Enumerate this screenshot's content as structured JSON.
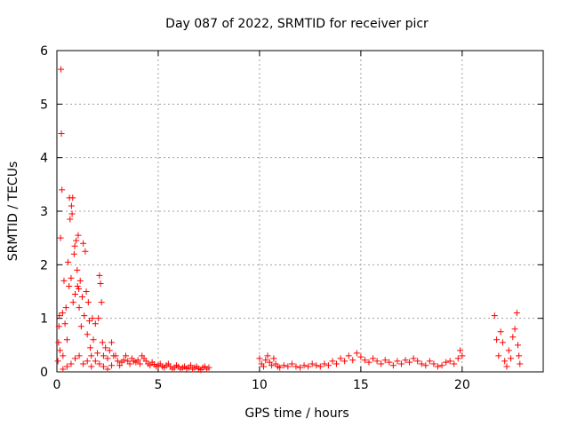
{
  "chart_data": {
    "type": "scatter",
    "title": "Day 087 of 2022, SRMTID for receiver picr",
    "xlabel": "GPS time / hours",
    "ylabel": "SRMTID / TECUs",
    "xlim": [
      0,
      24
    ],
    "ylim": [
      0,
      6
    ],
    "xticks": [
      {
        "value": 0,
        "label": "0"
      },
      {
        "value": 5,
        "label": "5"
      },
      {
        "value": 10,
        "label": "10"
      },
      {
        "value": 15,
        "label": "15"
      },
      {
        "value": 20,
        "label": "20"
      }
    ],
    "yticks": [
      {
        "value": 0,
        "label": "0"
      },
      {
        "value": 1,
        "label": "1"
      },
      {
        "value": 2,
        "label": "2"
      },
      {
        "value": 3,
        "label": "3"
      },
      {
        "value": 4,
        "label": "4"
      },
      {
        "value": 5,
        "label": "5"
      },
      {
        "value": 6,
        "label": "6"
      }
    ],
    "grid": true,
    "marker": "+",
    "marker_color": "#ff0000",
    "series": [
      {
        "name": "SRMTID",
        "points": [
          [
            0.05,
            0.2
          ],
          [
            0.08,
            0.55
          ],
          [
            0.1,
            0.85
          ],
          [
            0.12,
            1.05
          ],
          [
            0.15,
            0.4
          ],
          [
            0.18,
            2.5
          ],
          [
            0.2,
            5.65
          ],
          [
            0.22,
            4.45
          ],
          [
            0.25,
            3.4
          ],
          [
            0.28,
            1.1
          ],
          [
            0.3,
            0.3
          ],
          [
            0.35,
            1.7
          ],
          [
            0.4,
            0.9
          ],
          [
            0.45,
            1.2
          ],
          [
            0.5,
            0.6
          ],
          [
            0.55,
            2.05
          ],
          [
            0.6,
            1.6
          ],
          [
            0.62,
            3.25
          ],
          [
            0.65,
            2.85
          ],
          [
            0.7,
            1.75
          ],
          [
            0.72,
            3.1
          ],
          [
            0.75,
            2.95
          ],
          [
            0.78,
            3.25
          ],
          [
            0.8,
            1.3
          ],
          [
            0.85,
            2.2
          ],
          [
            0.88,
            2.35
          ],
          [
            0.9,
            1.45
          ],
          [
            0.95,
            2.45
          ],
          [
            1.0,
            1.9
          ],
          [
            1.02,
            1.6
          ],
          [
            1.05,
            2.55
          ],
          [
            1.08,
            1.55
          ],
          [
            1.1,
            1.2
          ],
          [
            1.15,
            1.7
          ],
          [
            1.2,
            0.85
          ],
          [
            1.25,
            1.4
          ],
          [
            1.3,
            2.4
          ],
          [
            1.35,
            1.05
          ],
          [
            1.4,
            2.25
          ],
          [
            1.45,
            1.5
          ],
          [
            1.5,
            0.7
          ],
          [
            1.55,
            1.3
          ],
          [
            1.6,
            0.95
          ],
          [
            1.65,
            0.45
          ],
          [
            1.7,
            0.3
          ],
          [
            1.75,
            1.0
          ],
          [
            1.8,
            0.6
          ],
          [
            1.9,
            0.9
          ],
          [
            2.0,
            0.35
          ],
          [
            2.05,
            1.0
          ],
          [
            2.1,
            1.8
          ],
          [
            2.15,
            1.65
          ],
          [
            2.2,
            1.3
          ],
          [
            2.25,
            0.55
          ],
          [
            2.3,
            0.3
          ],
          [
            2.4,
            0.45
          ],
          [
            2.5,
            0.25
          ],
          [
            2.6,
            0.4
          ],
          [
            2.7,
            0.55
          ],
          [
            2.8,
            0.3
          ],
          [
            0.3,
            0.05
          ],
          [
            0.5,
            0.1
          ],
          [
            0.7,
            0.15
          ],
          [
            0.9,
            0.25
          ],
          [
            1.1,
            0.3
          ],
          [
            1.3,
            0.15
          ],
          [
            1.5,
            0.2
          ],
          [
            1.7,
            0.1
          ],
          [
            1.9,
            0.2
          ],
          [
            2.1,
            0.15
          ],
          [
            2.3,
            0.1
          ],
          [
            2.5,
            0.05
          ],
          [
            2.7,
            0.12
          ],
          [
            2.9,
            0.3
          ],
          [
            3.0,
            0.2
          ],
          [
            3.1,
            0.12
          ],
          [
            3.2,
            0.18
          ],
          [
            3.3,
            0.22
          ],
          [
            3.4,
            0.3
          ],
          [
            3.5,
            0.2
          ],
          [
            3.6,
            0.15
          ],
          [
            3.7,
            0.25
          ],
          [
            3.8,
            0.2
          ],
          [
            3.9,
            0.18
          ],
          [
            4.0,
            0.22
          ],
          [
            4.1,
            0.15
          ],
          [
            4.2,
            0.3
          ],
          [
            4.3,
            0.25
          ],
          [
            4.4,
            0.2
          ],
          [
            4.5,
            0.15
          ],
          [
            4.6,
            0.12
          ],
          [
            4.7,
            0.18
          ],
          [
            4.8,
            0.14
          ],
          [
            4.9,
            0.1
          ],
          [
            5.0,
            0.12
          ],
          [
            5.1,
            0.15
          ],
          [
            5.2,
            0.1
          ],
          [
            5.3,
            0.08
          ],
          [
            5.4,
            0.12
          ],
          [
            5.5,
            0.15
          ],
          [
            5.6,
            0.1
          ],
          [
            5.7,
            0.05
          ],
          [
            5.8,
            0.08
          ],
          [
            5.9,
            0.12
          ],
          [
            6.0,
            0.1
          ],
          [
            6.1,
            0.05
          ],
          [
            6.2,
            0.08
          ],
          [
            6.3,
            0.1
          ],
          [
            6.4,
            0.06
          ],
          [
            6.5,
            0.08
          ],
          [
            6.6,
            0.12
          ],
          [
            6.7,
            0.05
          ],
          [
            6.8,
            0.08
          ],
          [
            6.9,
            0.1
          ],
          [
            7.0,
            0.06
          ],
          [
            7.1,
            0.04
          ],
          [
            7.2,
            0.08
          ],
          [
            7.3,
            0.1
          ],
          [
            7.4,
            0.05
          ],
          [
            7.5,
            0.08
          ],
          [
            10.0,
            0.25
          ],
          [
            10.1,
            0.15
          ],
          [
            10.2,
            0.1
          ],
          [
            10.3,
            0.22
          ],
          [
            10.4,
            0.3
          ],
          [
            10.5,
            0.18
          ],
          [
            10.6,
            0.12
          ],
          [
            10.7,
            0.25
          ],
          [
            10.8,
            0.15
          ],
          [
            10.9,
            0.1
          ],
          [
            11.0,
            0.08
          ],
          [
            11.2,
            0.12
          ],
          [
            11.4,
            0.1
          ],
          [
            11.6,
            0.15
          ],
          [
            11.8,
            0.1
          ],
          [
            12.0,
            0.08
          ],
          [
            12.2,
            0.12
          ],
          [
            12.4,
            0.1
          ],
          [
            12.6,
            0.15
          ],
          [
            12.8,
            0.12
          ],
          [
            13.0,
            0.1
          ],
          [
            13.2,
            0.15
          ],
          [
            13.4,
            0.12
          ],
          [
            13.6,
            0.2
          ],
          [
            13.8,
            0.15
          ],
          [
            14.0,
            0.25
          ],
          [
            14.2,
            0.2
          ],
          [
            14.4,
            0.3
          ],
          [
            14.6,
            0.22
          ],
          [
            14.8,
            0.35
          ],
          [
            15.0,
            0.28
          ],
          [
            15.2,
            0.22
          ],
          [
            15.4,
            0.18
          ],
          [
            15.6,
            0.25
          ],
          [
            15.8,
            0.2
          ],
          [
            16.0,
            0.15
          ],
          [
            16.2,
            0.22
          ],
          [
            16.4,
            0.18
          ],
          [
            16.6,
            0.12
          ],
          [
            16.8,
            0.2
          ],
          [
            17.0,
            0.15
          ],
          [
            17.2,
            0.22
          ],
          [
            17.4,
            0.18
          ],
          [
            17.6,
            0.25
          ],
          [
            17.8,
            0.2
          ],
          [
            18.0,
            0.15
          ],
          [
            18.2,
            0.12
          ],
          [
            18.4,
            0.2
          ],
          [
            18.6,
            0.15
          ],
          [
            18.8,
            0.1
          ],
          [
            19.0,
            0.12
          ],
          [
            19.2,
            0.18
          ],
          [
            19.4,
            0.2
          ],
          [
            19.6,
            0.15
          ],
          [
            19.8,
            0.25
          ],
          [
            19.9,
            0.4
          ],
          [
            20.0,
            0.3
          ],
          [
            21.6,
            1.05
          ],
          [
            21.7,
            0.6
          ],
          [
            21.8,
            0.3
          ],
          [
            21.9,
            0.75
          ],
          [
            22.0,
            0.55
          ],
          [
            22.1,
            0.2
          ],
          [
            22.2,
            0.1
          ],
          [
            22.3,
            0.4
          ],
          [
            22.4,
            0.25
          ],
          [
            22.5,
            0.65
          ],
          [
            22.6,
            0.8
          ],
          [
            22.7,
            1.1
          ],
          [
            22.75,
            0.5
          ],
          [
            22.8,
            0.3
          ],
          [
            22.85,
            0.15
          ]
        ]
      }
    ]
  }
}
